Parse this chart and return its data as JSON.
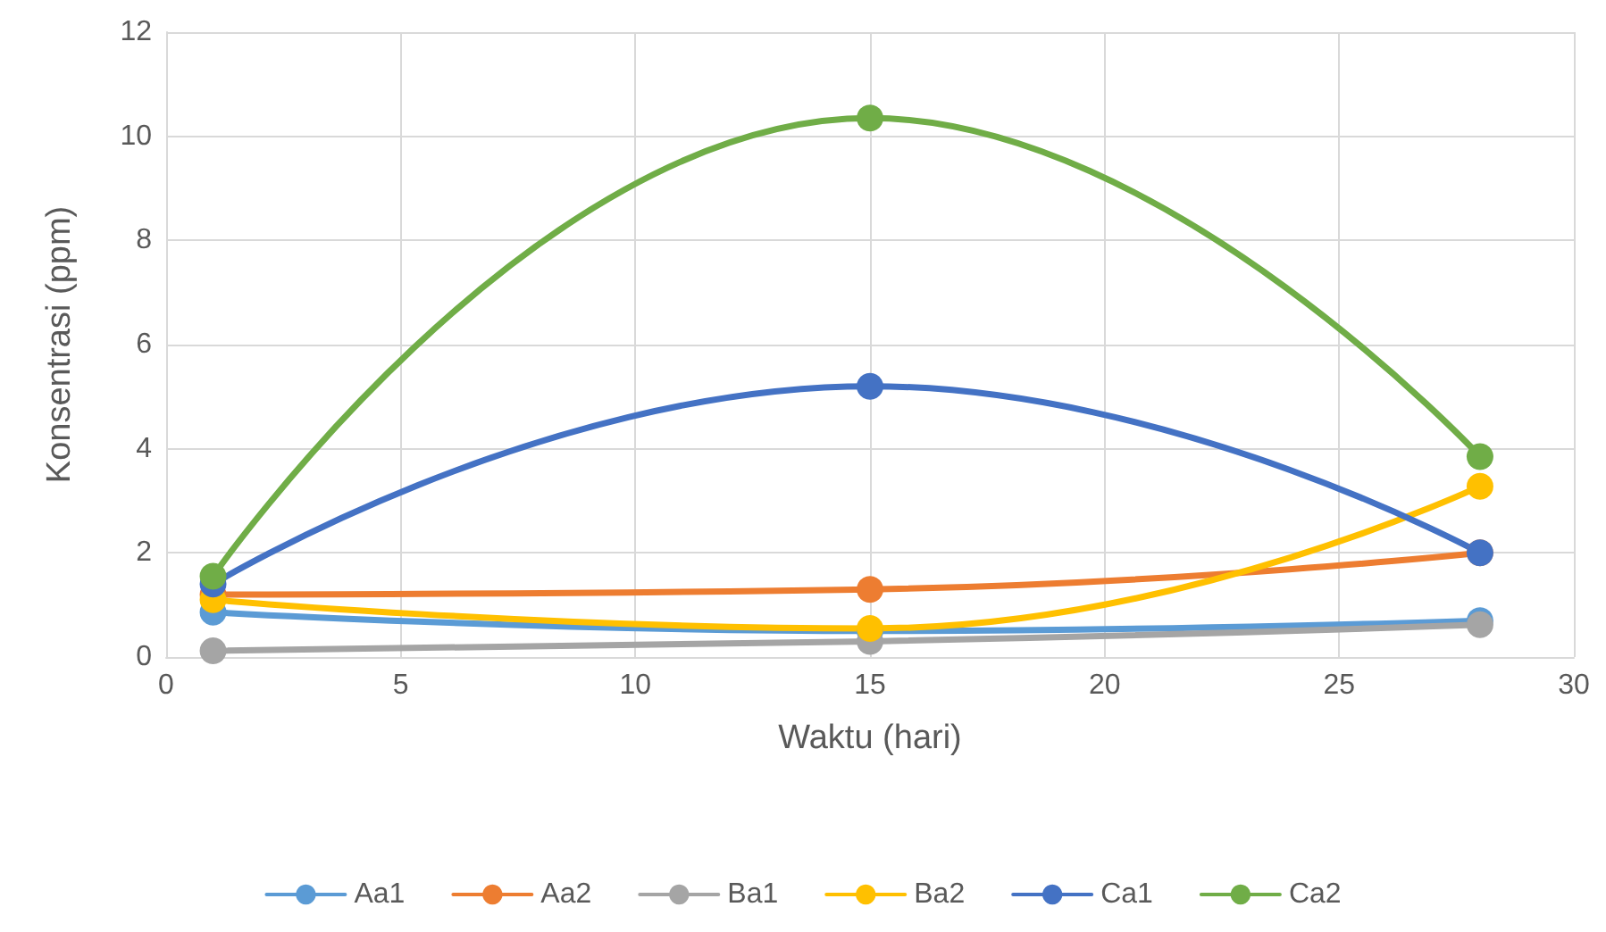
{
  "chart_data": {
    "type": "line",
    "xlabel": "Waktu (hari)",
    "ylabel": "Konsentrasi (ppm)",
    "x": [
      1,
      15,
      28
    ],
    "series": [
      {
        "name": "Aa1",
        "color": "#5b9bd5",
        "values": [
          0.86,
          0.5,
          0.7
        ]
      },
      {
        "name": "Aa2",
        "color": "#ed7d31",
        "values": [
          1.2,
          1.3,
          2.0
        ]
      },
      {
        "name": "Ba1",
        "color": "#a5a5a5",
        "values": [
          0.12,
          0.3,
          0.62
        ]
      },
      {
        "name": "Ba2",
        "color": "#ffc000",
        "values": [
          1.1,
          0.55,
          3.28
        ]
      },
      {
        "name": "Ca1",
        "color": "#4472c4",
        "values": [
          1.4,
          5.2,
          2.0
        ]
      },
      {
        "name": "Ca2",
        "color": "#70ad47",
        "values": [
          1.55,
          10.35,
          3.85
        ]
      }
    ],
    "xlim": [
      0,
      30
    ],
    "xticks": [
      0,
      5,
      10,
      15,
      20,
      25,
      30
    ],
    "ylim": [
      0,
      12
    ],
    "yticks": [
      0,
      2,
      4,
      6,
      8,
      10,
      12
    ],
    "grid": true,
    "legend": "bottom",
    "marker": "circle",
    "line_style": "solid"
  }
}
